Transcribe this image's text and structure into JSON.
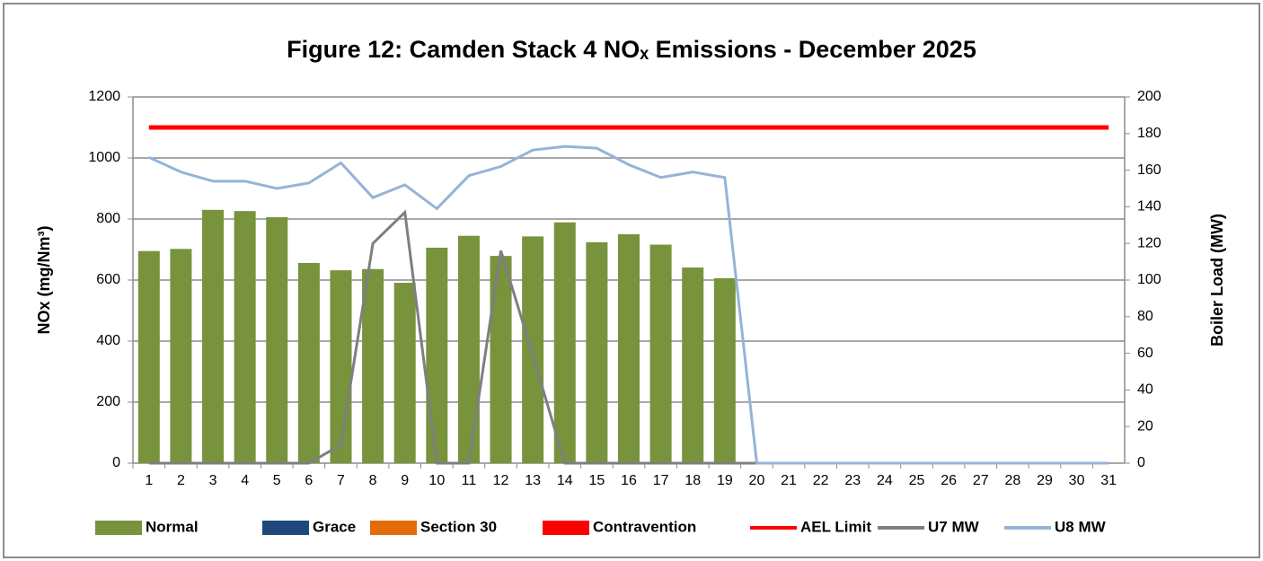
{
  "chart_data": {
    "type": "bar",
    "title": "Figure 12: Camden Stack 4 NOₓ Emissions - December 2025",
    "y_label": "NOx (mg/Nm³)",
    "y2_label": "Boiler Load (MW)",
    "categories": [
      "1",
      "2",
      "3",
      "4",
      "5",
      "6",
      "7",
      "8",
      "9",
      "10",
      "11",
      "12",
      "13",
      "14",
      "15",
      "16",
      "17",
      "18",
      "19",
      "20",
      "21",
      "22",
      "23",
      "24",
      "25",
      "26",
      "27",
      "28",
      "29",
      "30",
      "31"
    ],
    "ylim": [
      0,
      1200
    ],
    "yticks": [
      0,
      200,
      400,
      600,
      800,
      1000,
      1200
    ],
    "y2lim": [
      0,
      200
    ],
    "y2ticks": [
      0,
      20,
      40,
      60,
      80,
      100,
      120,
      140,
      160,
      180,
      200
    ],
    "grid": true,
    "legend": "bottom",
    "stacked": true,
    "series": [
      {
        "name": "Normal",
        "type": "bar",
        "color": "#77933c",
        "values": [
          695,
          702,
          830,
          826,
          806,
          656,
          632,
          636,
          591,
          706,
          745,
          679,
          743,
          789,
          724,
          750,
          716,
          641,
          606,
          null,
          null,
          null,
          null,
          null,
          null,
          null,
          null,
          null,
          null,
          null,
          null
        ]
      },
      {
        "name": "Grace",
        "type": "bar",
        "color": "#1f497d",
        "values": [
          0,
          0,
          0,
          0,
          0,
          0,
          0,
          0,
          0,
          0,
          0,
          0,
          0,
          0,
          0,
          0,
          0,
          0,
          0,
          0,
          0,
          0,
          0,
          0,
          0,
          0,
          0,
          0,
          0,
          0,
          0
        ]
      },
      {
        "name": "Section 30",
        "type": "bar",
        "color": "#e36c09",
        "values": [
          0,
          0,
          0,
          0,
          0,
          0,
          0,
          0,
          0,
          0,
          0,
          0,
          0,
          0,
          0,
          0,
          0,
          0,
          0,
          0,
          0,
          0,
          0,
          0,
          0,
          0,
          0,
          0,
          0,
          0,
          0
        ]
      },
      {
        "name": "Contravention",
        "type": "bar",
        "color": "#ff0000",
        "values": [
          0,
          0,
          0,
          0,
          0,
          0,
          0,
          0,
          0,
          0,
          0,
          0,
          0,
          0,
          0,
          0,
          0,
          0,
          0,
          0,
          0,
          0,
          0,
          0,
          0,
          0,
          0,
          0,
          0,
          0,
          0
        ]
      },
      {
        "name": "AEL Limit",
        "type": "line",
        "color": "#ff0000",
        "values": [
          1100,
          1100,
          1100,
          1100,
          1100,
          1100,
          1100,
          1100,
          1100,
          1100,
          1100,
          1100,
          1100,
          1100,
          1100,
          1100,
          1100,
          1100,
          1100,
          1100,
          1100,
          1100,
          1100,
          1100,
          1100,
          1100,
          1100,
          1100,
          1100,
          1100,
          1100
        ]
      },
      {
        "name": "U7 MW",
        "type": "line",
        "color": "#7f7f7f",
        "axis": "y2",
        "values": [
          0,
          0,
          0,
          0,
          0,
          0,
          10,
          120,
          137,
          0,
          0,
          116,
          59,
          0,
          0,
          0,
          0,
          0,
          0,
          0,
          0,
          0,
          0,
          0,
          0,
          0,
          0,
          0,
          0,
          0,
          0
        ]
      },
      {
        "name": "U8 MW",
        "type": "line",
        "color": "#95b3d7",
        "axis": "y2",
        "values": [
          167,
          159,
          154,
          154,
          150,
          153,
          164,
          145,
          152,
          139,
          157,
          162,
          171,
          173,
          172,
          163,
          156,
          159,
          156,
          0,
          0,
          0,
          0,
          0,
          0,
          0,
          0,
          0,
          0,
          0,
          0
        ]
      }
    ]
  }
}
